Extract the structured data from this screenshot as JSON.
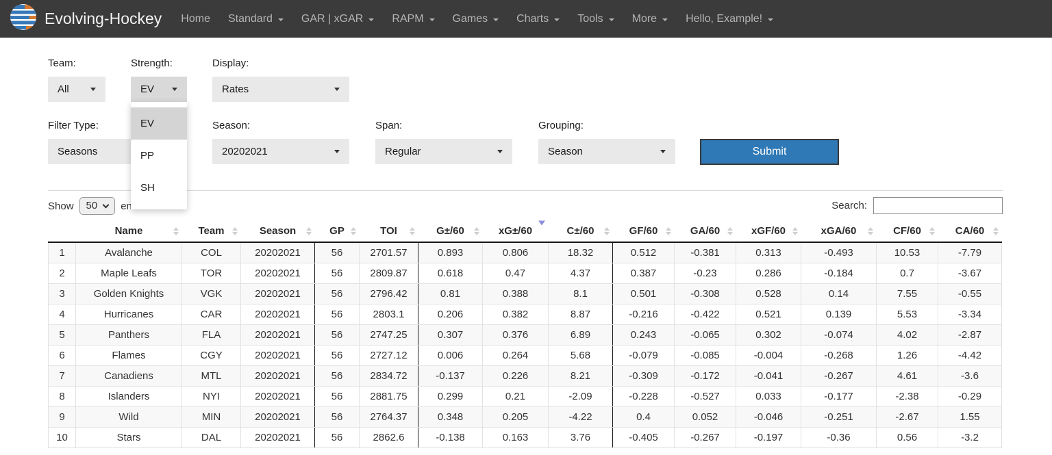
{
  "navbar": {
    "brand": "Evolving-Hockey",
    "items": [
      {
        "label": "Home",
        "caret": false
      },
      {
        "label": "Standard",
        "caret": true
      },
      {
        "label": "GAR | xGAR",
        "caret": true
      },
      {
        "label": "RAPM",
        "caret": true
      },
      {
        "label": "Games",
        "caret": true
      },
      {
        "label": "Charts",
        "caret": true
      },
      {
        "label": "Tools",
        "caret": true
      },
      {
        "label": "More",
        "caret": true
      },
      {
        "label": "Hello, Example!",
        "caret": true
      }
    ]
  },
  "filters": {
    "team": {
      "label": "Team:",
      "value": "All"
    },
    "strength": {
      "label": "Strength:",
      "value": "EV",
      "options": [
        "EV",
        "PP",
        "SH"
      ],
      "selected_option": "EV"
    },
    "display": {
      "label": "Display:",
      "value": "Rates"
    },
    "filter_type": {
      "label": "Filter Type:",
      "value": "Seasons"
    },
    "season": {
      "label": "Season:",
      "value": "20202021"
    },
    "span": {
      "label": "Span:",
      "value": "Regular"
    },
    "grouping": {
      "label": "Grouping:",
      "value": "Season"
    },
    "submit_label": "Submit"
  },
  "table_controls": {
    "show_label": "Show",
    "page_length": "50",
    "entries_label": "entries",
    "search_label": "Search:",
    "search_value": ""
  },
  "table": {
    "columns": [
      {
        "label": "",
        "sort": "none"
      },
      {
        "label": "Name",
        "sort": "both"
      },
      {
        "label": "Team",
        "sort": "both"
      },
      {
        "label": "Season",
        "sort": "both"
      },
      {
        "label": "GP",
        "sort": "both"
      },
      {
        "label": "TOI",
        "sort": "both"
      },
      {
        "label": "G±/60",
        "sort": "both"
      },
      {
        "label": "xG±/60",
        "sort": "desc"
      },
      {
        "label": "C±/60",
        "sort": "both"
      },
      {
        "label": "GF/60",
        "sort": "both"
      },
      {
        "label": "GA/60",
        "sort": "both"
      },
      {
        "label": "xGF/60",
        "sort": "both"
      },
      {
        "label": "xGA/60",
        "sort": "both"
      },
      {
        "label": "CF/60",
        "sort": "both"
      },
      {
        "label": "CA/60",
        "sort": "both"
      }
    ],
    "rows": [
      [
        "1",
        "Avalanche",
        "COL",
        "20202021",
        "56",
        "2701.57",
        "0.893",
        "0.806",
        "18.32",
        "0.512",
        "-0.381",
        "0.313",
        "-0.493",
        "10.53",
        "-7.79"
      ],
      [
        "2",
        "Maple Leafs",
        "TOR",
        "20202021",
        "56",
        "2809.87",
        "0.618",
        "0.47",
        "4.37",
        "0.387",
        "-0.23",
        "0.286",
        "-0.184",
        "0.7",
        "-3.67"
      ],
      [
        "3",
        "Golden Knights",
        "VGK",
        "20202021",
        "56",
        "2796.42",
        "0.81",
        "0.388",
        "8.1",
        "0.501",
        "-0.308",
        "0.528",
        "0.14",
        "7.55",
        "-0.55"
      ],
      [
        "4",
        "Hurricanes",
        "CAR",
        "20202021",
        "56",
        "2803.1",
        "0.206",
        "0.382",
        "8.87",
        "-0.216",
        "-0.422",
        "0.521",
        "0.139",
        "5.53",
        "-3.34"
      ],
      [
        "5",
        "Panthers",
        "FLA",
        "20202021",
        "56",
        "2747.25",
        "0.307",
        "0.376",
        "6.89",
        "0.243",
        "-0.065",
        "0.302",
        "-0.074",
        "4.02",
        "-2.87"
      ],
      [
        "6",
        "Flames",
        "CGY",
        "20202021",
        "56",
        "2727.12",
        "0.006",
        "0.264",
        "5.68",
        "-0.079",
        "-0.085",
        "-0.004",
        "-0.268",
        "1.26",
        "-4.42"
      ],
      [
        "7",
        "Canadiens",
        "MTL",
        "20202021",
        "56",
        "2834.72",
        "-0.137",
        "0.226",
        "8.21",
        "-0.309",
        "-0.172",
        "-0.041",
        "-0.267",
        "4.61",
        "-3.6"
      ],
      [
        "8",
        "Islanders",
        "NYI",
        "20202021",
        "56",
        "2881.75",
        "0.299",
        "0.21",
        "-2.09",
        "-0.228",
        "-0.527",
        "0.033",
        "-0.177",
        "-2.38",
        "-0.29"
      ],
      [
        "9",
        "Wild",
        "MIN",
        "20202021",
        "56",
        "2764.37",
        "0.348",
        "0.205",
        "-4.22",
        "0.4",
        "0.052",
        "-0.046",
        "-0.251",
        "-2.67",
        "1.55"
      ],
      [
        "10",
        "Stars",
        "DAL",
        "20202021",
        "56",
        "2862.6",
        "-0.138",
        "0.163",
        "3.76",
        "-0.405",
        "-0.267",
        "-0.197",
        "-0.36",
        "0.56",
        "-3.2"
      ]
    ]
  },
  "colors": {
    "navbar_bg": "#3b3b3b",
    "accent_blue": "#2f79b6",
    "sort_active_arrow": "#8a90d9",
    "logo_blue": "#3878b8",
    "logo_orange": "#d9792f"
  }
}
